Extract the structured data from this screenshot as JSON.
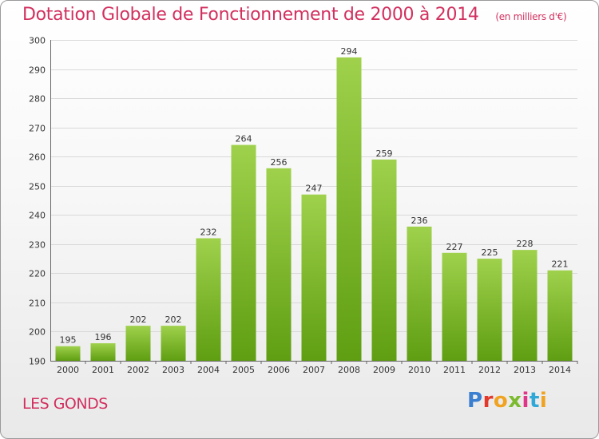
{
  "title": "Dotation Globale de Fonctionnement de 2000 à 2014",
  "unit_note": "(en milliers d'€)",
  "commune": "LES GONDS",
  "brand": {
    "letters": [
      "P",
      "r",
      "o",
      "x",
      "i",
      "t",
      "i"
    ]
  },
  "colors": {
    "title": "#d2305f",
    "bar_top": "#9fd14c",
    "bar_bottom": "#5f9e12",
    "grid": "#d9d9d9"
  },
  "chart_data": {
    "type": "bar",
    "title": "Dotation Globale de Fonctionnement de 2000 à 2014",
    "subtitle": "(en milliers d'€)",
    "xlabel": "",
    "ylabel": "",
    "categories": [
      "2000",
      "2001",
      "2002",
      "2003",
      "2004",
      "2005",
      "2006",
      "2007",
      "2008",
      "2009",
      "2010",
      "2011",
      "2012",
      "2013",
      "2014"
    ],
    "values": [
      195,
      196,
      202,
      202,
      232,
      264,
      256,
      247,
      294,
      259,
      236,
      227,
      225,
      228,
      221
    ],
    "ylim": [
      190,
      300
    ],
    "yticks": [
      190,
      200,
      210,
      220,
      230,
      240,
      250,
      260,
      270,
      280,
      290,
      300
    ],
    "grid": true,
    "data_labels": true
  }
}
